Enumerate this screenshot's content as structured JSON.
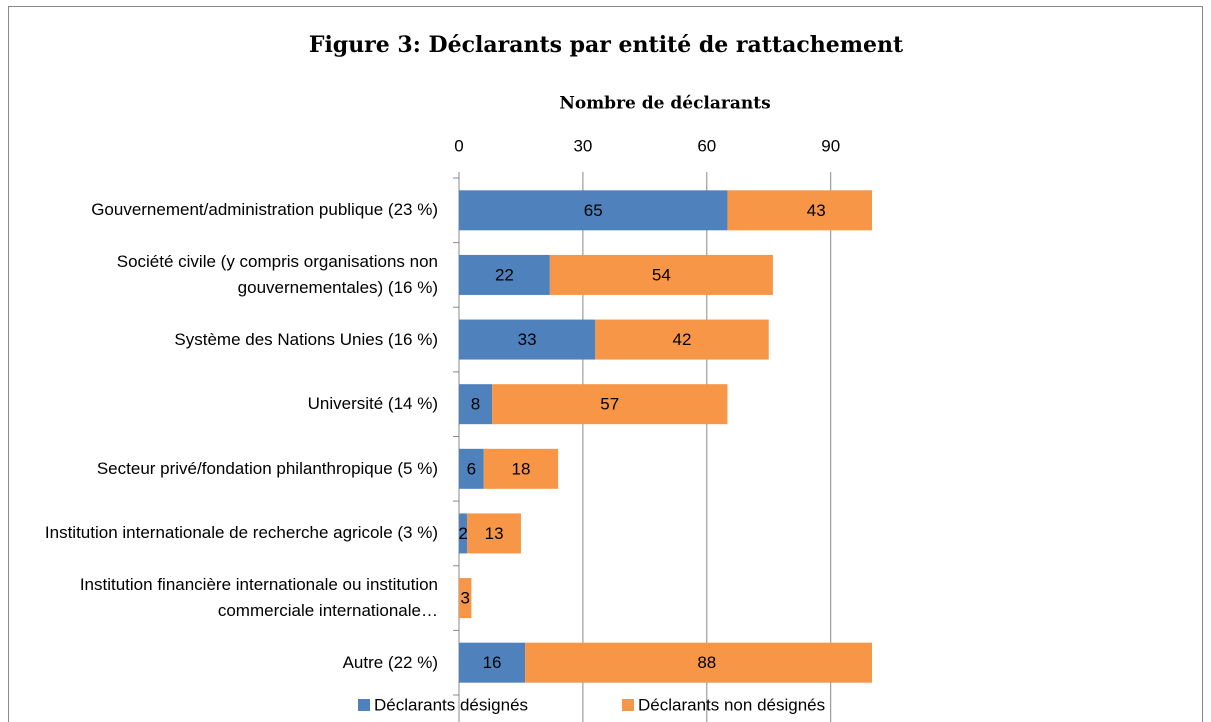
{
  "chart_data": {
    "type": "stacked-barh",
    "title": "Figure 3: Déclarants par entité de rattachement",
    "xlabel": "Nombre de déclarants",
    "categories": [
      "Gouvernement/administration publique (23 %)",
      "Société civile (y compris organisations non gouvernementales) (16 %)",
      "Système des Nations Unies (16 %)",
      "Université (14 %)",
      "Secteur privé/fondation philanthropique (5 %)",
      "Institution internationale de recherche agricole (3 %)",
      "Institution financière internationale ou institution commerciale internationale…",
      "Autre (22 %)"
    ],
    "series": [
      {
        "name": "Déclarants désignés",
        "color": "#4f81bd",
        "values": [
          65,
          22,
          33,
          8,
          6,
          2,
          null,
          16
        ]
      },
      {
        "name": "Déclarants non désignés",
        "color": "#f79646",
        "values": [
          43,
          54,
          42,
          57,
          18,
          13,
          3,
          88
        ]
      }
    ],
    "xlim": [
      0,
      100
    ],
    "xticks": [
      0,
      30,
      60,
      90
    ],
    "grid": true,
    "legend": "bottom"
  }
}
